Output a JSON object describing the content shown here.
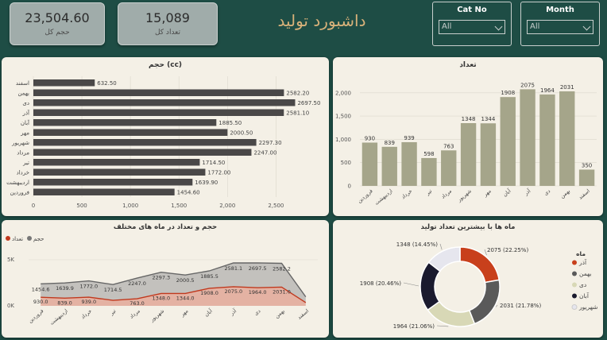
{
  "kpis": [
    {
      "value": "23,504.60",
      "label": "حجم کل"
    },
    {
      "value": "15,089",
      "label": "تعداد کل"
    }
  ],
  "title": "داشبورد تولید",
  "slicers": [
    {
      "title": "Cat No",
      "value": "All"
    },
    {
      "title": "Month",
      "value": "All"
    }
  ],
  "chart_data": [
    {
      "type": "bar",
      "orientation": "horizontal",
      "title": "حجم (cc)",
      "categories": [
        "اسفند",
        "بهمن",
        "دی",
        "آذر",
        "آبان",
        "مهر",
        "شهریور",
        "مرداد",
        "تیر",
        "خرداد",
        "اردیبهشت",
        "فروردین"
      ],
      "values": [
        632.5,
        2582.2,
        2697.5,
        2581.1,
        1885.5,
        2000.5,
        2297.3,
        2247.0,
        1714.5,
        1772.0,
        1639.9,
        1454.6
      ],
      "labels": [
        "632.50",
        "2582.20",
        "2697.50",
        "2581.10",
        "1885.50",
        "2000.50",
        "2297.30",
        "2247.00",
        "1714.50",
        "1772.00",
        "1639.90",
        "1454.60"
      ],
      "xlim": [
        0,
        2800
      ],
      "xticks": [
        "0",
        "500",
        "1,000",
        "1,500",
        "2,000",
        "2,500"
      ],
      "color": "#4a4848"
    },
    {
      "type": "bar",
      "title": "تعداد",
      "categories": [
        "فروردین",
        "اردیبهشت",
        "خرداد",
        "تیر",
        "مرداد",
        "شهریور",
        "مهر",
        "آبان",
        "آذر",
        "دی",
        "بهمن",
        "اسفند"
      ],
      "values": [
        930,
        839,
        939,
        598,
        763,
        1348,
        1344,
        1908,
        2075,
        1964,
        2031,
        350
      ],
      "ylim": [
        0,
        2150
      ],
      "yticks": [
        "0",
        "500",
        "1,000",
        "1,500",
        "2,000"
      ],
      "color": "#a5a58a"
    },
    {
      "type": "area",
      "title": "حجم و تعداد در ماه های مختلف",
      "legend": [
        "حجم",
        "تعداد"
      ],
      "legend_position": "top-left",
      "categories": [
        "فروردین",
        "اردیبهشت",
        "خرداد",
        "تیر",
        "مرداد",
        "شهریور",
        "مهر",
        "آبان",
        "آذر",
        "دی",
        "بهمن",
        "اسفند"
      ],
      "series": [
        {
          "name": "حجم",
          "color": "#777777",
          "values": [
            1454.6,
            1639.9,
            1772.0,
            1714.5,
            2247.0,
            2297.3,
            2000.5,
            1885.5,
            2581.1,
            2697.5,
            2582.2,
            632.5
          ],
          "labels": [
            "1454.6",
            "1639.9",
            "1772.0",
            "1714.5",
            "2247.0",
            "2297.3",
            "2000.5",
            "1885.5",
            "2581.1",
            "2697.5",
            "2582.2",
            ""
          ]
        },
        {
          "name": "تعداد",
          "color": "#c0391e",
          "values": [
            930,
            839,
            939,
            598,
            763,
            1348,
            1344,
            1908,
            2075,
            1964,
            2031,
            350
          ],
          "labels": [
            "930.0",
            "839.0",
            "939.0",
            "",
            "763.0",
            "1348.0",
            "1344.0",
            "1908.0",
            "2075.0",
            "1964.0",
            "2031.0",
            ""
          ]
        }
      ],
      "ylim": [
        0,
        5000
      ],
      "yticks": [
        "0K",
        "5K"
      ]
    },
    {
      "type": "pie",
      "variant": "donut",
      "title": "ماه ها با بیشترین تعداد تولید",
      "legend_title": "ماه",
      "legend_position": "right",
      "slices": [
        {
          "name": "آذر",
          "value": 2075,
          "label": "2075 (22.25%)",
          "color": "#c8401c"
        },
        {
          "name": "بهمن",
          "value": 2031,
          "label": "2031 (21.78%)",
          "color": "#5a5a5a"
        },
        {
          "name": "دی",
          "value": 1964,
          "label": "1964 (21.06%)",
          "color": "#d8d8b6"
        },
        {
          "name": "آبان",
          "value": 1908,
          "label": "1908 (20.46%)",
          "color": "#1a1a2e"
        },
        {
          "name": "شهریور",
          "value": 1348,
          "label": "1348 (14.45%)",
          "color": "#e6e6ee"
        }
      ]
    }
  ]
}
